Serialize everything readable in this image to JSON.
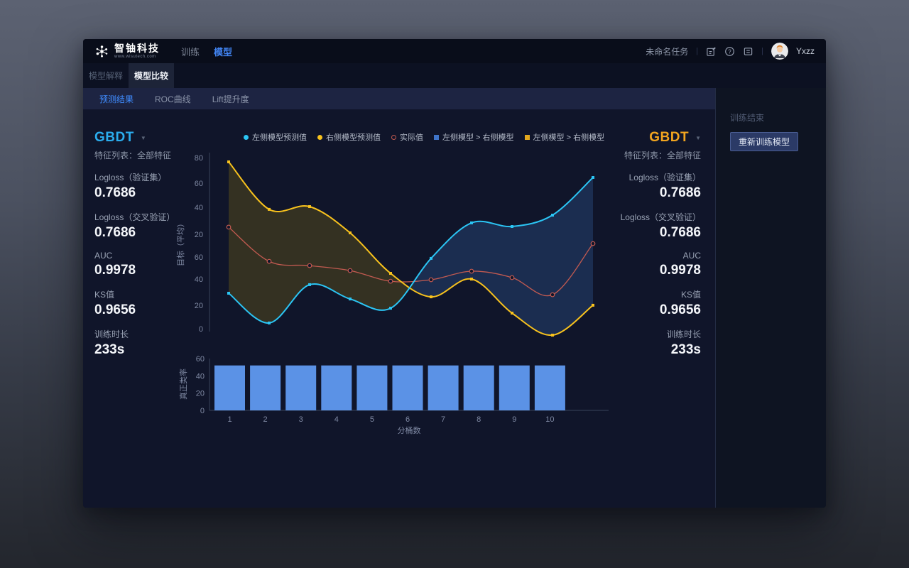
{
  "navbar": {
    "brand": {
      "name": "智铀科技",
      "site": "www.wisutech.com"
    },
    "nav": [
      {
        "label": "训练",
        "active": false
      },
      {
        "label": "模型",
        "active": true
      }
    ],
    "task_name": "未命名任务",
    "user": {
      "name": "Yxzz"
    }
  },
  "tabs": [
    {
      "label": "模型解释",
      "active": false
    },
    {
      "label": "模型比较",
      "active": true
    }
  ],
  "subtabs": [
    {
      "label": "预测结果",
      "active": true
    },
    {
      "label": "ROC曲线",
      "active": false
    },
    {
      "label": "Lift提升度",
      "active": false
    }
  ],
  "left_panel": {
    "model": "GBDT",
    "feature_list": "特征列表：全部特征",
    "metrics": [
      {
        "label": "Logloss（验证集）",
        "value": "0.7686"
      },
      {
        "label": "Logloss（交叉验证）",
        "value": "0.7686"
      },
      {
        "label": "AUC",
        "value": "0.9978"
      },
      {
        "label": "KS值",
        "value": "0.9656"
      },
      {
        "label": "训练时长",
        "value": "233s"
      }
    ]
  },
  "right_panel": {
    "model": "GBDT",
    "feature_list": "特征列表：全部特征",
    "metrics": [
      {
        "label": "Logloss（验证集）",
        "value": "0.7686"
      },
      {
        "label": "Logloss（交叉验证）",
        "value": "0.7686"
      },
      {
        "label": "AUC",
        "value": "0.9978"
      },
      {
        "label": "KS值",
        "value": "0.9656"
      },
      {
        "label": "训练时长",
        "value": "233s"
      }
    ]
  },
  "sidebar": {
    "status": "训练结束",
    "retrain_button": "重新训练模型"
  },
  "legend": [
    {
      "label": "左侧模型预测值",
      "shape": "circle",
      "color": "#2bc5f4"
    },
    {
      "label": "右侧模型预测值",
      "shape": "circle",
      "color": "#f8c21d"
    },
    {
      "label": "实际值",
      "shape": "circle-open",
      "color": "#c25a50"
    },
    {
      "label": "左侧模型 > 右侧模型",
      "shape": "square",
      "color": "#3f74c9"
    },
    {
      "label": "左侧模型 > 右侧模型",
      "shape": "square",
      "color": "#e2a71e"
    }
  ],
  "chart_data": [
    {
      "type": "line",
      "ylabel": "目标（平均）",
      "y_tick_labels": [
        "80",
        "60",
        "40",
        "20",
        "60",
        "40",
        "20",
        "0"
      ],
      "x_count": 10,
      "grid": false,
      "series": [
        {
          "name": "左侧模型预测值",
          "color": "#2bc5f4",
          "marker": "square",
          "values": [
            16.6,
            2.7,
            20.6,
            13.9,
            9.6,
            32.9,
            49.5,
            47.8,
            53.1,
            70.7
          ]
        },
        {
          "name": "右侧模型预测值",
          "color": "#f8c21d",
          "marker": "square",
          "values": [
            78.0,
            55.8,
            57.1,
            44.8,
            25.9,
            14.9,
            23.2,
            7.3,
            -3.0,
            11.0
          ]
        },
        {
          "name": "实际值",
          "color": "#c25a50",
          "marker": "circle-open",
          "values": [
            47.5,
            31.5,
            29.5,
            27.2,
            22.2,
            22.9,
            26.9,
            23.9,
            15.9,
            39.8
          ]
        }
      ],
      "areas": [
        {
          "name": "左侧模型 > 右侧模型",
          "region": "left-of-crossing",
          "color": "#343122"
        },
        {
          "name": "左侧模型 > 右侧模型",
          "region": "right-of-crossing",
          "color": "#1b2d50"
        }
      ]
    },
    {
      "type": "bar",
      "xlabel": "分桶数",
      "ylabel": "真正类率",
      "categories": [
        "1",
        "2",
        "3",
        "4",
        "5",
        "6",
        "7",
        "8",
        "9",
        "10"
      ],
      "values": [
        52,
        52,
        52,
        52,
        52,
        52,
        52,
        52,
        52,
        52
      ],
      "y_ticks": [
        60,
        40,
        20,
        0
      ],
      "ylim": [
        0,
        60
      ],
      "bar_color": "#5b92e6"
    }
  ],
  "colors": {
    "accent_blue": "#3f8cff",
    "left_model": "#2badee",
    "right_model": "#f2a51f",
    "content_bg": "#10152a",
    "axis": "#39425a",
    "tick_text": "#7f89a3"
  }
}
